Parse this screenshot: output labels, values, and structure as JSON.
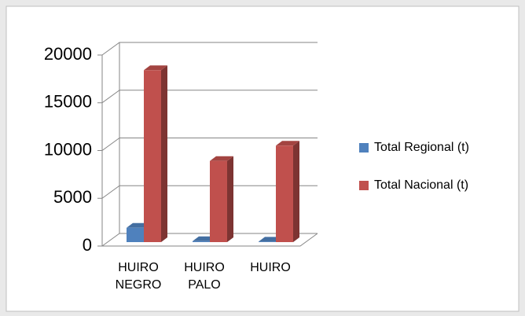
{
  "chart_data": {
    "type": "bar3d",
    "categories": [
      "HUIRO NEGRO",
      "HUIRO PALO",
      "HUIRO"
    ],
    "series": [
      {
        "name": "Total Regional (t)",
        "color": "#4f81bd",
        "values": [
          1500,
          100,
          50
        ]
      },
      {
        "name": "Total Nacional (t)",
        "color": "#c0504d",
        "values": [
          18000,
          8500,
          10100
        ]
      }
    ],
    "ylim": [
      0,
      20000
    ],
    "yticks": [
      0,
      5000,
      10000,
      15000,
      20000
    ],
    "grid": true,
    "legend": "right"
  }
}
